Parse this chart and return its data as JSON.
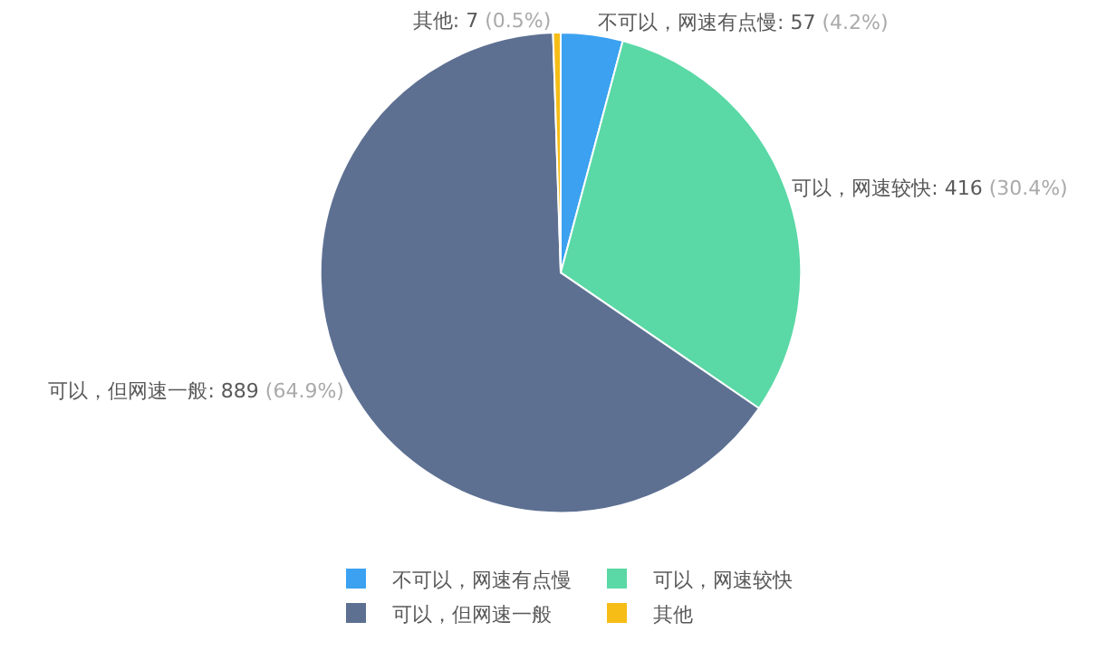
{
  "chart_data": {
    "type": "pie",
    "categories": [
      "不可以，网速有点慢",
      "可以，网速较快",
      "可以，但网速一般",
      "其他"
    ],
    "values": [
      57,
      416,
      889,
      7
    ],
    "colors": [
      "#3ba1f0",
      "#5ad8a6",
      "#5d7092",
      "#f6bd16"
    ],
    "value_labels": [
      "不可以，网速有点慢: 57 (4.2%)",
      "可以，网速较快: 416 (30.4%)",
      "可以，但网速一般: 889 (64.9%)",
      "其他: 7 (0.5%)"
    ],
    "legend": "bottom"
  }
}
